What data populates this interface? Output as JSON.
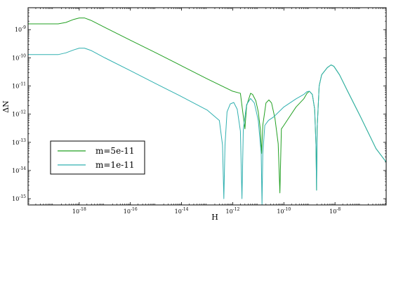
{
  "chart_data": {
    "type": "line",
    "xlabel": "H",
    "ylabel": "ΔN",
    "xscale": "log",
    "yscale": "log",
    "xlim": [
      1e-20,
      1e-06
    ],
    "ylim": [
      6e-16,
      6e-09
    ],
    "xticks": [
      {
        "exp": "-18",
        "value": 1e-18
      },
      {
        "exp": "-16",
        "value": 1e-16
      },
      {
        "exp": "-14",
        "value": 1e-14
      },
      {
        "exp": "-12",
        "value": 1e-12
      },
      {
        "exp": "-10",
        "value": 1e-10
      },
      {
        "exp": "-8",
        "value": 1e-08
      }
    ],
    "yticks": [
      {
        "exp": "-9",
        "value": 1e-09
      },
      {
        "exp": "-10",
        "value": 1e-10
      },
      {
        "exp": "-11",
        "value": 1e-11
      },
      {
        "exp": "-12",
        "value": 1e-12
      },
      {
        "exp": "-13",
        "value": 1e-13
      },
      {
        "exp": "-14",
        "value": 1e-14
      },
      {
        "exp": "-15",
        "value": 1e-15
      }
    ],
    "tick_base": "10",
    "legend_position": "lower-left",
    "series": [
      {
        "name": "m=5e-11",
        "color": "#22a022",
        "points": [
          [
            1e-20,
            1.6e-09
          ],
          [
            1.5e-19,
            1.6e-09
          ],
          [
            3e-19,
            1.8e-09
          ],
          [
            6e-19,
            2.3e-09
          ],
          [
            1e-18,
            2.6e-09
          ],
          [
            1.6e-18,
            2.6e-09
          ],
          [
            3e-18,
            2.1e-09
          ],
          [
            1e-17,
            1.2e-09
          ],
          [
            1e-16,
            4.2e-10
          ],
          [
            1e-15,
            1.5e-10
          ],
          [
            1e-14,
            5.2e-11
          ],
          [
            1e-13,
            1.8e-11
          ],
          [
            1e-12,
            6.5e-12
          ],
          [
            2e-12,
            5.5e-12
          ],
          [
            3e-12,
            3e-13
          ],
          [
            3.5e-12,
            2e-12
          ],
          [
            5e-12,
            5.5e-12
          ],
          [
            6e-12,
            5e-12
          ],
          [
            8e-12,
            3e-12
          ],
          [
            1e-11,
            1.2e-12
          ],
          [
            1.2e-11,
            3e-13
          ],
          [
            1.35e-11,
            4e-14
          ],
          [
            1.5e-11,
            4e-13
          ],
          [
            2e-11,
            2.5e-12
          ],
          [
            2.6e-11,
            3.2e-12
          ],
          [
            3.3e-11,
            2.5e-12
          ],
          [
            4.5e-11,
            7e-13
          ],
          [
            6e-11,
            9e-14
          ],
          [
            7e-11,
            1.6e-15
          ],
          [
            8e-11,
            3e-13
          ],
          [
            1e-10,
            4e-13
          ],
          [
            1.5e-10,
            7e-13
          ],
          [
            3e-10,
            1.8e-12
          ],
          [
            6e-10,
            3.5e-12
          ],
          [
            8e-10,
            5.5e-12
          ],
          [
            1e-09,
            6.5e-12
          ],
          [
            1.3e-09,
            5e-12
          ],
          [
            1.6e-09,
            1.5e-12
          ],
          [
            1.8e-09,
            8e-14
          ],
          [
            1.9e-09,
            2e-15
          ],
          [
            2e-09,
            3e-13
          ],
          [
            2.4e-09,
            1e-11
          ],
          [
            3e-09,
            2.5e-11
          ],
          [
            5e-09,
            4.5e-11
          ],
          [
            7e-09,
            5.6e-11
          ],
          [
            9e-09,
            5e-11
          ],
          [
            1.5e-08,
            2.5e-11
          ],
          [
            3e-08,
            7e-12
          ],
          [
            1e-07,
            8e-13
          ],
          [
            4e-07,
            6e-14
          ],
          [
            1e-06,
            2e-14
          ]
        ]
      },
      {
        "name": "m=1e-11",
        "color": "#30b0b0",
        "points": [
          [
            1e-20,
            1.3e-10
          ],
          [
            1.5e-19,
            1.3e-10
          ],
          [
            3e-19,
            1.5e-10
          ],
          [
            6e-19,
            1.9e-10
          ],
          [
            1e-18,
            2.2e-10
          ],
          [
            1.6e-18,
            2.2e-10
          ],
          [
            3e-18,
            1.8e-10
          ],
          [
            1e-17,
            1e-10
          ],
          [
            1e-16,
            3.5e-11
          ],
          [
            1e-15,
            1.2e-11
          ],
          [
            1e-14,
            4.2e-12
          ],
          [
            1e-13,
            1.4e-12
          ],
          [
            3e-13,
            6e-13
          ],
          [
            4e-13,
            8e-14
          ],
          [
            4.5e-13,
            1e-15
          ],
          [
            5e-13,
            8e-14
          ],
          [
            6e-13,
            1.2e-12
          ],
          [
            8e-13,
            2.3e-12
          ],
          [
            1.1e-12,
            2.6e-12
          ],
          [
            1.5e-12,
            1.5e-12
          ],
          [
            2e-12,
            2.5e-13
          ],
          [
            2.3e-12,
            1e-15
          ],
          [
            2.6e-12,
            3e-13
          ],
          [
            3.5e-12,
            2.2e-12
          ],
          [
            5e-12,
            3.6e-12
          ],
          [
            7e-12,
            2.5e-12
          ],
          [
            1e-11,
            6e-13
          ],
          [
            1.3e-11,
            4e-14
          ],
          [
            1.4e-11,
            2e-16
          ],
          [
            1.5e-11,
            4e-14
          ],
          [
            1.8e-11,
            4e-13
          ],
          [
            2.5e-11,
            6e-13
          ],
          [
            4e-11,
            8e-13
          ],
          [
            1e-10,
            1.8e-12
          ],
          [
            3e-10,
            3.5e-12
          ],
          [
            6e-10,
            5e-12
          ],
          [
            8e-10,
            6.3e-12
          ],
          [
            1e-09,
            6.5e-12
          ],
          [
            1.3e-09,
            5e-12
          ],
          [
            1.6e-09,
            1.5e-12
          ],
          [
            1.8e-09,
            8e-14
          ],
          [
            1.9e-09,
            2e-15
          ],
          [
            2e-09,
            3e-13
          ],
          [
            2.4e-09,
            1e-11
          ],
          [
            3e-09,
            2.5e-11
          ],
          [
            5e-09,
            4.5e-11
          ],
          [
            7e-09,
            5.6e-11
          ],
          [
            9e-09,
            5e-11
          ],
          [
            1.5e-08,
            2.5e-11
          ],
          [
            3e-08,
            7e-12
          ],
          [
            1e-07,
            8e-13
          ],
          [
            4e-07,
            6e-14
          ],
          [
            1e-06,
            2e-14
          ]
        ]
      }
    ]
  }
}
